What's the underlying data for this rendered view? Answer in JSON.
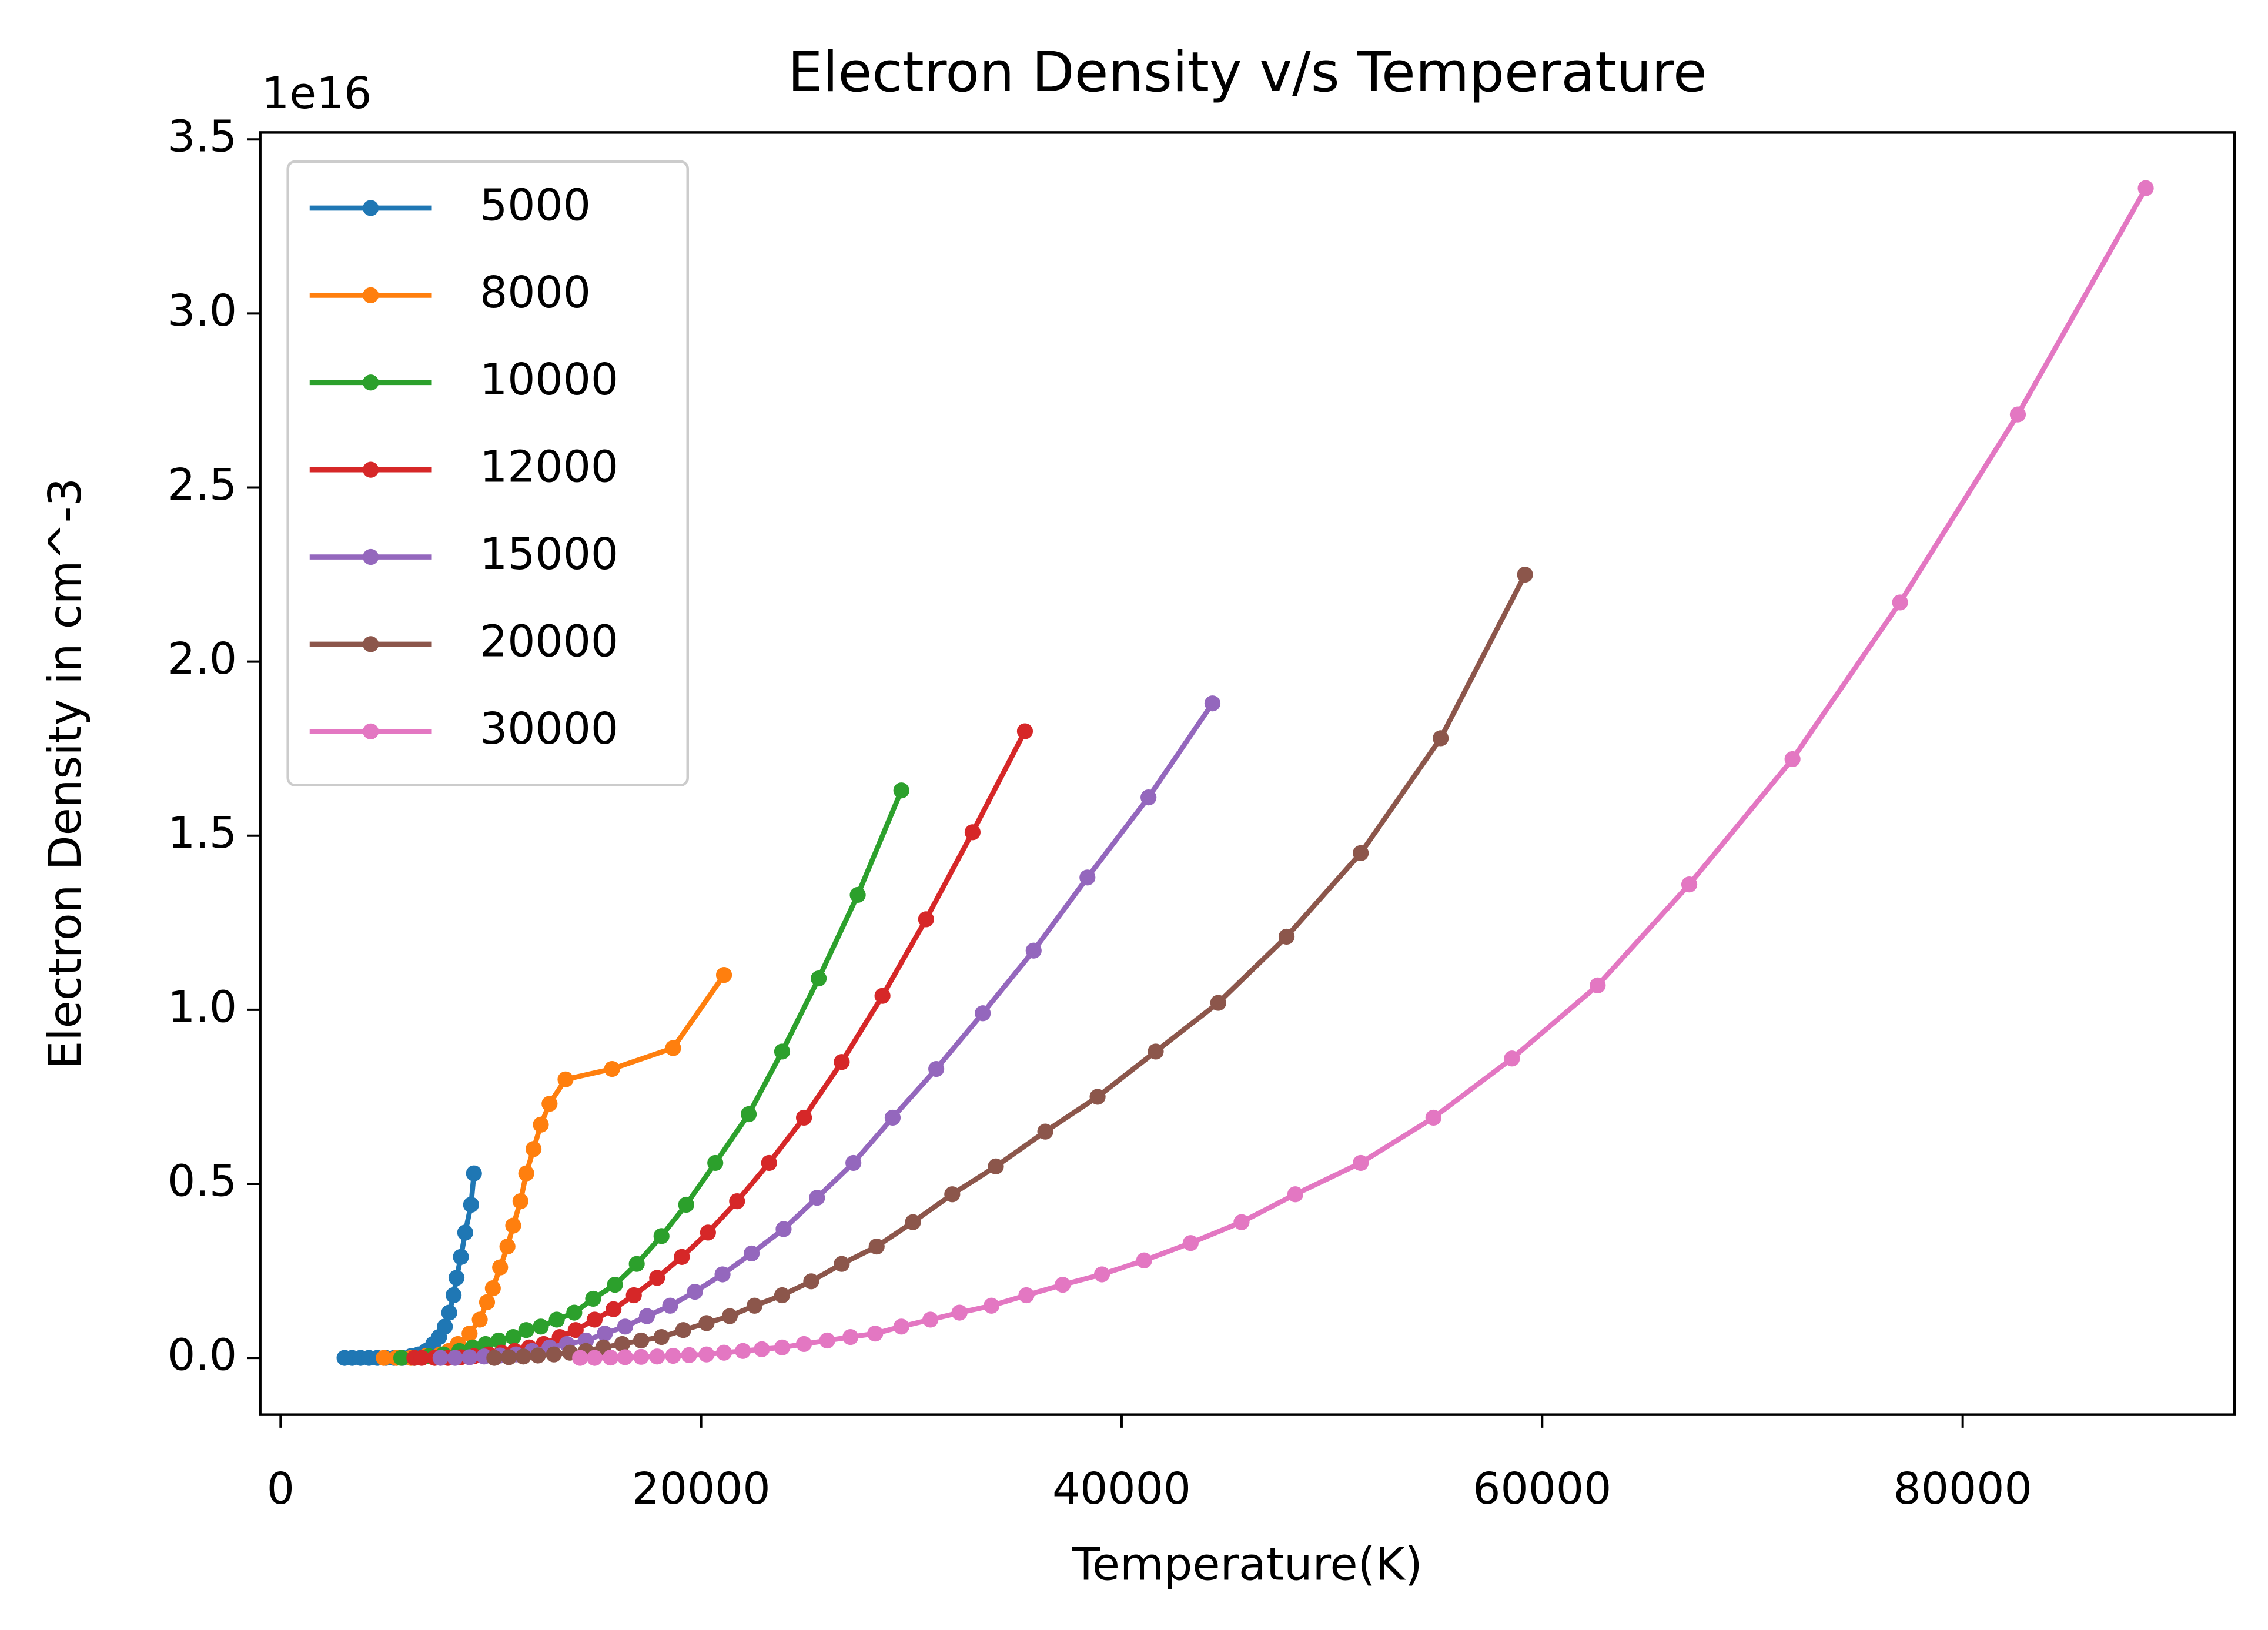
{
  "chart_data": {
    "type": "line",
    "title": "Electron Density v/s Temperature",
    "xlabel": "Temperature(K)",
    "ylabel": "Electron Density in cm^-3",
    "y_offset_label": "1e16",
    "xlim": [
      -968,
      92930
    ],
    "ylim": [
      -0.163,
      3.52
    ],
    "xticks": [
      0,
      20000,
      40000,
      60000,
      80000
    ],
    "yticks": [
      {
        "value": 0,
        "label": "0.0"
      },
      {
        "value": 0.5,
        "label": "0.5"
      },
      {
        "value": 1,
        "label": "1.0"
      },
      {
        "value": 1.5,
        "label": "1.5"
      },
      {
        "value": 2,
        "label": "2.0"
      },
      {
        "value": 2.5,
        "label": "2.5"
      },
      {
        "value": 3,
        "label": "3.0"
      },
      {
        "value": 3.5,
        "label": "3.5"
      }
    ],
    "grid": false,
    "legend": "upper left",
    "series": [
      {
        "name": "5000",
        "color": "#1f77b4",
        "x": [
          3042,
          3400,
          3800,
          4200,
          4600,
          5000,
          5400,
          5800,
          6200,
          6569,
          6914,
          7260,
          7537,
          7813,
          8020,
          8228,
          8366,
          8574,
          8780,
          9058,
          9196
        ],
        "values": [
          0,
          0,
          0,
          0,
          0,
          0,
          0,
          0,
          0.005,
          0.01,
          0.02,
          0.04,
          0.06,
          0.09,
          0.13,
          0.18,
          0.23,
          0.29,
          0.36,
          0.44,
          0.53
        ]
      },
      {
        "name": "8000",
        "color": "#ff7f0e",
        "x": [
          4909,
          5500,
          6200,
          6900,
          7600,
          8000,
          8435,
          8988,
          9472,
          9818,
          10094,
          10440,
          10788,
          11062,
          11408,
          11684,
          12030,
          12376,
          12791,
          13551,
          15764,
          18668,
          21088
        ],
        "values": [
          0,
          0,
          0,
          0.005,
          0.01,
          0.02,
          0.04,
          0.07,
          0.11,
          0.16,
          0.2,
          0.26,
          0.32,
          0.38,
          0.45,
          0.53,
          0.6,
          0.67,
          0.73,
          0.8,
          0.83,
          0.89,
          1.1
        ]
      },
      {
        "name": "10000",
        "color": "#2ca02c",
        "x": [
          5739,
          6361,
          7052,
          7744,
          8504,
          9126,
          9749,
          10371,
          11062,
          11685,
          12376,
          13137,
          13966,
          14865,
          15902,
          16939,
          18115,
          19290,
          20673,
          22263,
          23853,
          25592,
          27449,
          29523
        ],
        "values": [
          0,
          0,
          0.005,
          0.01,
          0.02,
          0.03,
          0.04,
          0.05,
          0.06,
          0.08,
          0.09,
          0.11,
          0.13,
          0.17,
          0.21,
          0.27,
          0.35,
          0.44,
          0.56,
          0.7,
          0.88,
          1.09,
          1.33,
          1.63
        ]
      },
      {
        "name": "12000",
        "color": "#d62728",
        "x": [
          6361,
          6707,
          7329,
          7951,
          8573,
          9196,
          9887,
          10509,
          11132,
          11823,
          12514,
          13275,
          14035,
          14934,
          15833,
          16801,
          17907,
          19083,
          20327,
          21710,
          23231,
          24892,
          26689,
          28625,
          30699,
          32911,
          35400
        ],
        "values": [
          0,
          0,
          0,
          0,
          0.002,
          0.005,
          0.01,
          0.015,
          0.02,
          0.03,
          0.04,
          0.06,
          0.08,
          0.11,
          0.14,
          0.18,
          0.23,
          0.29,
          0.36,
          0.45,
          0.56,
          0.69,
          0.85,
          1.04,
          1.26,
          1.51,
          1.8
        ]
      },
      {
        "name": "15000",
        "color": "#9467bd",
        "x": [
          7605,
          8297,
          8988,
          9680,
          10440,
          11201,
          11961,
          12791,
          13621,
          14520,
          15419,
          16387,
          17424,
          18530,
          19705,
          21019,
          22402,
          23923,
          25514,
          27242,
          29109,
          31183,
          33395,
          35815,
          38373,
          41277,
          44319
        ],
        "values": [
          0,
          0,
          0.002,
          0.004,
          0.007,
          0.01,
          0.02,
          0.03,
          0.04,
          0.05,
          0.07,
          0.09,
          0.12,
          0.15,
          0.19,
          0.24,
          0.3,
          0.37,
          0.46,
          0.56,
          0.69,
          0.83,
          0.99,
          1.17,
          1.38,
          1.61,
          1.88
        ]
      },
      {
        "name": "20000",
        "color": "#8c564b",
        "x": [
          10164,
          10855,
          11547,
          12238,
          12999,
          13759,
          14520,
          15349,
          16248,
          17147,
          18115,
          19152,
          20258,
          21364,
          22540,
          23854,
          25236,
          26688,
          28348,
          30076,
          31943,
          34017,
          36368,
          38857,
          41622,
          44595,
          47845,
          51371,
          55174,
          59184
        ],
        "values": [
          0,
          0.002,
          0.004,
          0.007,
          0.01,
          0.015,
          0.02,
          0.03,
          0.04,
          0.05,
          0.06,
          0.08,
          0.1,
          0.12,
          0.15,
          0.18,
          0.22,
          0.27,
          0.32,
          0.39,
          0.47,
          0.55,
          0.65,
          0.75,
          0.88,
          1.02,
          1.21,
          1.45,
          1.78,
          2.25
        ]
      },
      {
        "name": "30000",
        "color": "#e377c2",
        "x": [
          14243,
          14934,
          15694,
          16386,
          17147,
          17907,
          18668,
          19429,
          20258,
          21088,
          21987,
          22886,
          23854,
          24891,
          25997,
          27103,
          28279,
          29523,
          30906,
          32288,
          33809,
          35469,
          37197,
          39064,
          41069,
          43282,
          45701,
          48260,
          51371,
          54828,
          58562,
          62641,
          66996,
          71906,
          77022,
          82623,
          88707
        ],
        "values": [
          0,
          0,
          0.001,
          0.002,
          0.003,
          0.004,
          0.006,
          0.008,
          0.01,
          0.015,
          0.02,
          0.025,
          0.03,
          0.04,
          0.05,
          0.06,
          0.07,
          0.09,
          0.11,
          0.13,
          0.15,
          0.18,
          0.21,
          0.24,
          0.28,
          0.33,
          0.39,
          0.47,
          0.56,
          0.69,
          0.86,
          1.07,
          1.36,
          1.72,
          2.17,
          2.71,
          3.36
        ]
      }
    ]
  }
}
